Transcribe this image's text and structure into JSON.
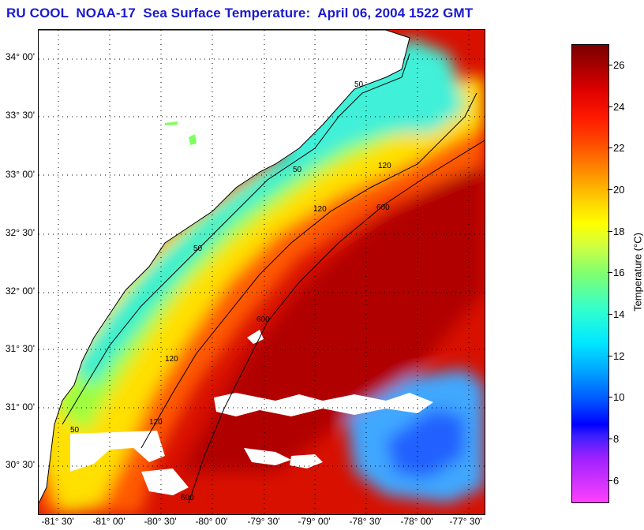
{
  "title": "RU COOL  NOAA-17  Sea Surface Temperature:  April 06, 2004 1522 GMT",
  "map": {
    "lat_labels": [
      "34° 00'",
      "33° 30'",
      "33° 00'",
      "32° 30'",
      "32° 00'",
      "31° 30'",
      "31° 00'",
      "30° 30'"
    ],
    "lon_labels": [
      "-81° 30'",
      "-81° 00'",
      "-80° 30'",
      "-80° 00'",
      "-79° 30'",
      "-79° 00'",
      "-78° 30'",
      "-78° 00'",
      "-77° 30'"
    ],
    "isobaths": [
      "50",
      "120",
      "600"
    ],
    "colors": {
      "land": "#ffffff",
      "clouds": "#ffffff",
      "gridlines": "#000000",
      "isobath_lines": "#000000"
    }
  },
  "colorbar": {
    "label": "Temperature (°C)",
    "ticks": [
      "26",
      "24",
      "22",
      "20",
      "18",
      "16",
      "14",
      "12",
      "10",
      "8",
      "6"
    ],
    "min": 5,
    "max": 27
  }
}
